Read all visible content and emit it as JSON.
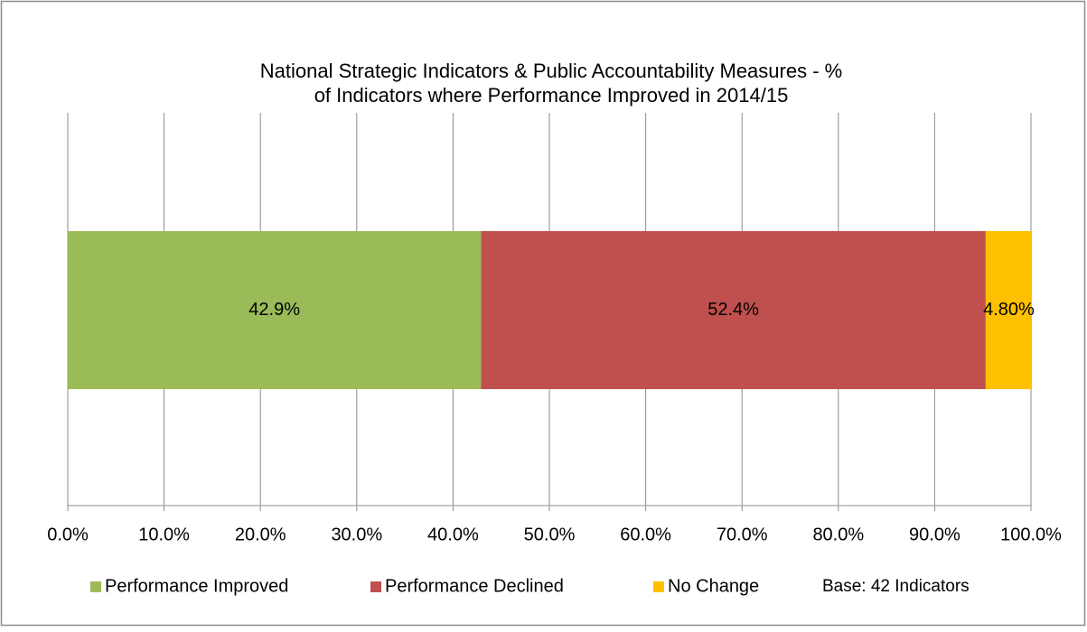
{
  "chart_data": {
    "type": "stacked-bar-horizontal",
    "title": [
      "National Strategic Indicators & Public Accountability Measures - %",
      "of Indicators where Performance Improved in 2014/15"
    ],
    "categories": [
      null
    ],
    "series": [
      {
        "name": "Performance Improved",
        "color": "#9bbb59",
        "values": [
          42.9
        ],
        "value_labels": [
          "42.9%"
        ]
      },
      {
        "name": "Performance Declined",
        "color": "#c0504d",
        "values": [
          52.4
        ],
        "value_labels": [
          "52.4%"
        ]
      },
      {
        "name": "No Change",
        "color": "#ffc000",
        "values": [
          4.8
        ],
        "value_labels": [
          "4.80%"
        ]
      }
    ],
    "xlim": [
      0,
      100
    ],
    "xticks": [
      {
        "value": 0,
        "label": "0.0%"
      },
      {
        "value": 10,
        "label": "10.0%"
      },
      {
        "value": 20,
        "label": "20.0%"
      },
      {
        "value": 30,
        "label": "30.0%"
      },
      {
        "value": 40,
        "label": "40.0%"
      },
      {
        "value": 50,
        "label": "50.0%"
      },
      {
        "value": 60,
        "label": "60.0%"
      },
      {
        "value": 70,
        "label": "70.0%"
      },
      {
        "value": 80,
        "label": "80.0%"
      },
      {
        "value": 90,
        "label": "90.0%"
      },
      {
        "value": 100,
        "label": "100.0%"
      }
    ],
    "grid": true,
    "legend": "bottom",
    "annotation": "Base: 42 Indicators"
  }
}
